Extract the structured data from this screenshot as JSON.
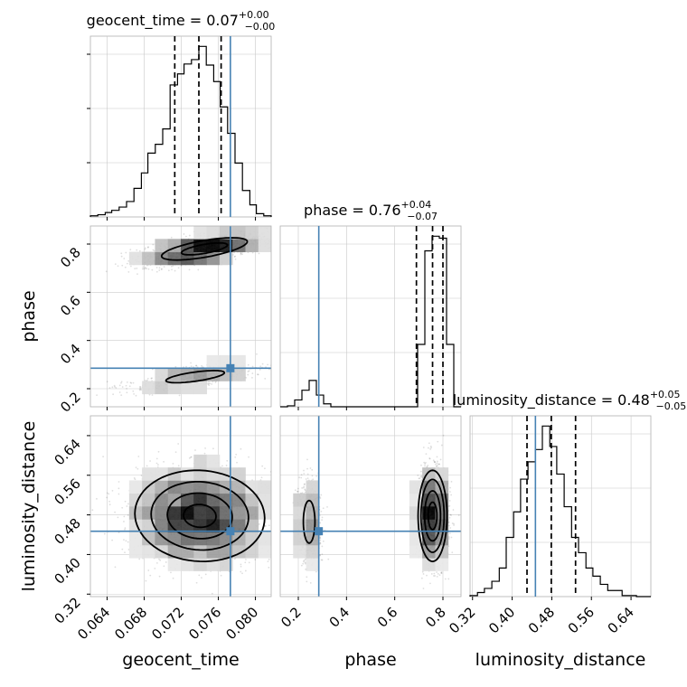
{
  "chart_data": {
    "type": "corner",
    "parameters": [
      "geocent_time",
      "phase",
      "luminosity_distance"
    ],
    "axis_labels": [
      "geocent_time",
      "phase",
      "luminosity_distance"
    ],
    "ranges": [
      [
        0.0622,
        0.0817
      ],
      [
        0.125,
        0.875
      ],
      [
        0.315,
        0.68
      ]
    ],
    "ticks": [
      [
        0.064,
        0.068,
        0.072,
        0.076,
        0.08
      ],
      [
        0.2,
        0.4,
        0.6,
        0.8
      ],
      [
        0.32,
        0.4,
        0.48,
        0.56,
        0.64
      ]
    ],
    "tick_labels": [
      [
        "0.064",
        "0.068",
        "0.072",
        "0.076",
        "0.080"
      ],
      [
        "0.2",
        "0.4",
        "0.6",
        "0.8"
      ],
      [
        "0.32",
        "0.40",
        "0.48",
        "0.56",
        "0.64"
      ]
    ],
    "truths": [
      0.0773,
      0.285,
      0.447
    ],
    "truth_color": "#4682b4",
    "titles": [
      {
        "param": "geocent_time",
        "median": "0.07",
        "plus": "+0.00",
        "minus": "−0.00"
      },
      {
        "param": "phase",
        "median": "0.76",
        "plus": "+0.04",
        "minus": "−0.07"
      },
      {
        "param": "luminosity_distance",
        "median": "0.48",
        "plus": "+0.05",
        "minus": "−0.05"
      }
    ],
    "quantiles": [
      [
        0.0713,
        0.0739,
        0.0763
      ],
      [
        0.69,
        0.757,
        0.8
      ],
      [
        0.43,
        0.479,
        0.528
      ]
    ],
    "histograms": [
      {
        "edges": [
          0.0622,
          0.063,
          0.0638,
          0.0645,
          0.0653,
          0.0661,
          0.0669,
          0.0677,
          0.0684,
          0.0692,
          0.07,
          0.0708,
          0.0716,
          0.0723,
          0.0731,
          0.0739,
          0.0747,
          0.0755,
          0.0762,
          0.077,
          0.0778,
          0.0786,
          0.0794,
          0.0801,
          0.0809,
          0.0817
        ],
        "counts": [
          1,
          2,
          4,
          6,
          9,
          14,
          26,
          40,
          58,
          66,
          80,
          120,
          130,
          139,
          143,
          155,
          138,
          123,
          100,
          76,
          49,
          24,
          11,
          3,
          1
        ]
      },
      {
        "edges": [
          0.125,
          0.155,
          0.185,
          0.215,
          0.245,
          0.275,
          0.305,
          0.335,
          0.365,
          0.395,
          0.425,
          0.455,
          0.485,
          0.515,
          0.545,
          0.575,
          0.605,
          0.635,
          0.665,
          0.695,
          0.725,
          0.755,
          0.785,
          0.815,
          0.845,
          0.875
        ],
        "counts": [
          0,
          1,
          7,
          17,
          27,
          12,
          3,
          0,
          0,
          0,
          0,
          0,
          0,
          0,
          0,
          0,
          0,
          0,
          0,
          64,
          160,
          175,
          173,
          64,
          0
        ]
      },
      {
        "edges": [
          0.315,
          0.33,
          0.344,
          0.359,
          0.374,
          0.388,
          0.403,
          0.417,
          0.432,
          0.447,
          0.461,
          0.476,
          0.49,
          0.505,
          0.52,
          0.534,
          0.549,
          0.563,
          0.578,
          0.593,
          0.607,
          0.622,
          0.636,
          0.651,
          0.666,
          0.68
        ],
        "counts": [
          1,
          4,
          8,
          15,
          28,
          58,
          83,
          115,
          132,
          144,
          167,
          147,
          120,
          88,
          58,
          43,
          28,
          20,
          12,
          6,
          6,
          1,
          1,
          0,
          0
        ]
      }
    ],
    "samples_2d": [
      {
        "x": "geocent_time",
        "y": "phase",
        "clusters": [
          {
            "mx": 0.0745,
            "my": 0.78,
            "sx": 0.0033,
            "sy": 0.033,
            "rho": 0.65,
            "n": 1900
          },
          {
            "mx": 0.0735,
            "my": 0.25,
            "sx": 0.0035,
            "sy": 0.028,
            "rho": 0.65,
            "n": 600
          }
        ],
        "contours": [
          {
            "cluster": 0,
            "k": [
              0.75,
              1.4
            ]
          },
          {
            "cluster": 1,
            "k": [
              0.9
            ]
          }
        ]
      },
      {
        "x": "geocent_time",
        "y": "luminosity_distance",
        "clusters": [
          {
            "mx": 0.074,
            "my": 0.478,
            "sx": 0.0035,
            "sy": 0.046,
            "rho": -0.05,
            "n": 2500
          }
        ],
        "contours": [
          {
            "cluster": 0,
            "k": [
              0.5,
              1.0,
              1.5,
              2.0
            ]
          }
        ]
      },
      {
        "x": "phase",
        "y": "luminosity_distance",
        "clusters": [
          {
            "mx": 0.757,
            "my": 0.478,
            "sx": 0.03,
            "sy": 0.046,
            "rho": 0.0,
            "n": 1900
          },
          {
            "mx": 0.245,
            "my": 0.466,
            "sx": 0.024,
            "sy": 0.043,
            "rho": 0.0,
            "n": 600
          }
        ],
        "contours": [
          {
            "cluster": 0,
            "k": [
              0.6,
              1.1,
              1.6,
              2.0
            ]
          },
          {
            "cluster": 1,
            "k": [
              1.0
            ]
          }
        ]
      }
    ]
  }
}
